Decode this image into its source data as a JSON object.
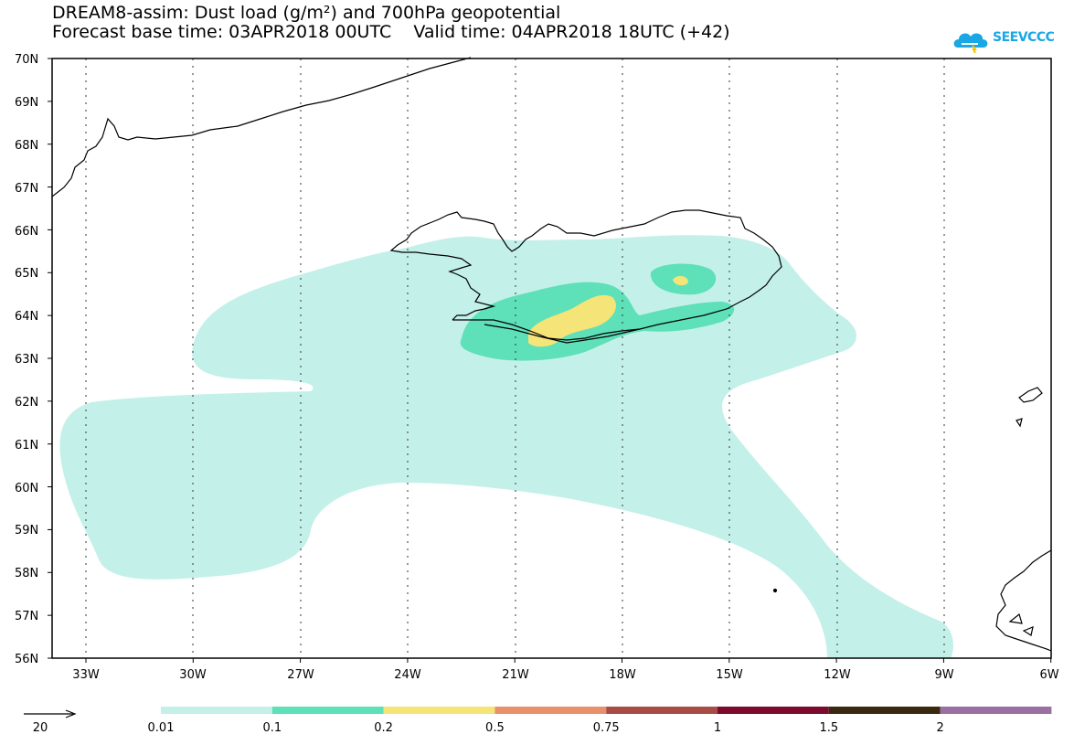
{
  "header": {
    "title_line1": "DREAM8-assim: Dust load (g/m²) and 700hPa geopotential",
    "title_line2": "Forecast base time: 03APR2018 00UTC    Valid time: 04APR2018 18UTC (+42)",
    "logo_text": "SEEVCCC",
    "logo_icon": "cloud-icon",
    "logo_color": "#1aa7e6"
  },
  "map": {
    "lat_labels": [
      "70N",
      "69N",
      "68N",
      "67N",
      "66N",
      "65N",
      "64N",
      "63N",
      "62N",
      "61N",
      "60N",
      "59N",
      "58N",
      "57N",
      "56N"
    ],
    "lon_labels": [
      "33W",
      "30W",
      "27W",
      "24W",
      "21W",
      "18W",
      "15W",
      "12W",
      "9W",
      "6W"
    ],
    "lat_range": [
      56,
      70
    ],
    "lon_range": [
      -34.0,
      -6.0
    ],
    "grid": "dotted",
    "colors": {
      "0.01-0.1": "#c4f0ea",
      "0.1-0.2": "#5ee0b8",
      "0.2-0.5": "#f5e478",
      "coastline": "#000000"
    }
  },
  "legend": {
    "arrow_label": "20",
    "labels": [
      "0.01",
      "0.1",
      "0.2",
      "0.5",
      "0.75",
      "1",
      "1.5",
      "2"
    ],
    "colors": [
      "#c4f0ea",
      "#5ee0b8",
      "#f5e478",
      "#e8906c",
      "#a84c46",
      "#7c0a2c",
      "#3a2810",
      "#9a70a0"
    ]
  }
}
